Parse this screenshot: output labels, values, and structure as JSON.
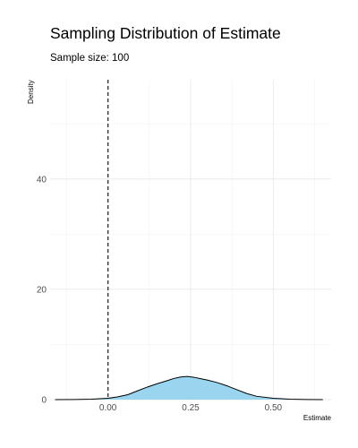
{
  "chart_data": {
    "type": "area",
    "title": "Sampling Distribution of Estimate",
    "subtitle": "Sample size: 100",
    "xlabel": "Estimate",
    "ylabel": "Density",
    "xlim": [
      -0.175,
      0.675
    ],
    "ylim": [
      0,
      58
    ],
    "x_ticks": [
      0.0,
      0.25,
      0.5
    ],
    "x_tick_labels": [
      "0.00",
      "0.25",
      "0.50"
    ],
    "y_ticks": [
      0,
      20,
      40
    ],
    "y_tick_labels": [
      "0",
      "20",
      "40"
    ],
    "grid": true,
    "reference_line": {
      "x": 0.0,
      "style": "dashed"
    },
    "fill_color": "#87CEEB",
    "series": [
      {
        "x": [
          -0.16,
          -0.1,
          -0.05,
          0.0,
          0.03,
          0.06,
          0.09,
          0.12,
          0.15,
          0.18,
          0.2,
          0.22,
          0.24,
          0.26,
          0.28,
          0.3,
          0.33,
          0.36,
          0.39,
          0.42,
          0.45,
          0.5,
          0.55,
          0.6,
          0.65
        ],
        "values": [
          0.0,
          0.02,
          0.08,
          0.25,
          0.5,
          0.9,
          1.6,
          2.3,
          2.9,
          3.45,
          3.85,
          4.1,
          4.2,
          4.05,
          3.8,
          3.55,
          3.1,
          2.5,
          1.8,
          1.1,
          0.6,
          0.25,
          0.08,
          0.02,
          0.0
        ]
      }
    ]
  }
}
